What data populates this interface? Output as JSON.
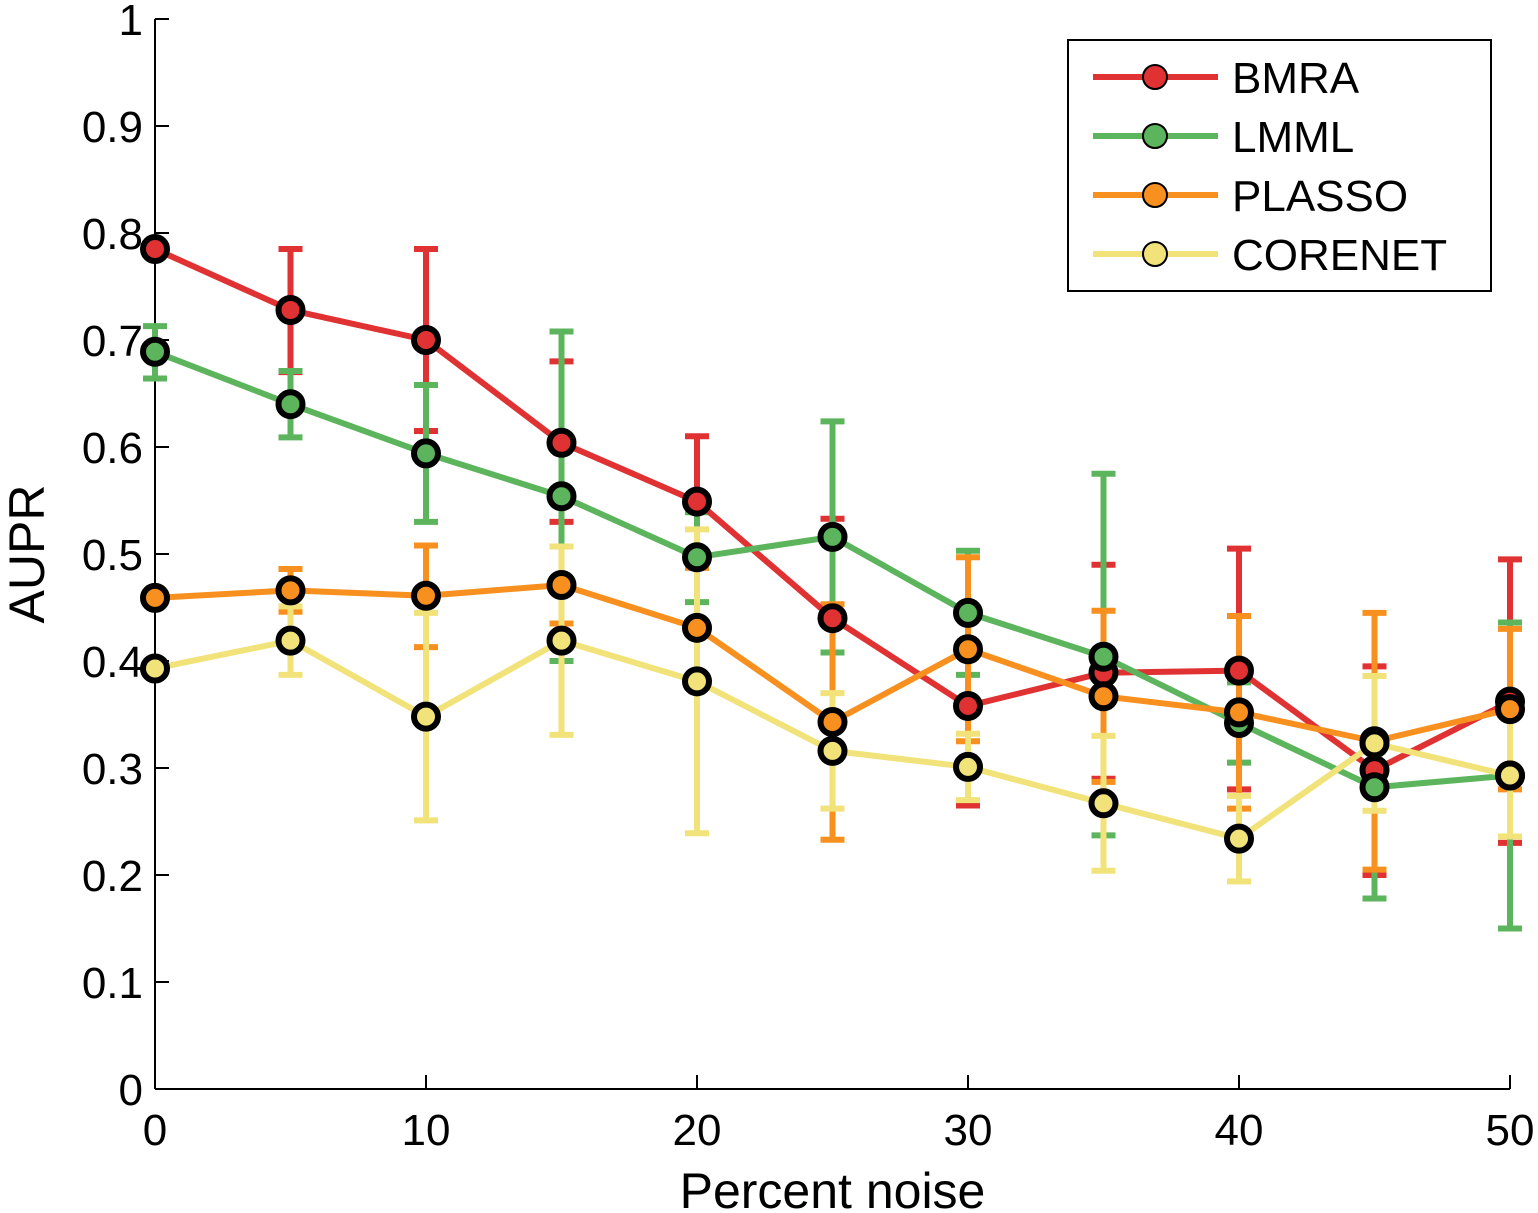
{
  "chart_data": {
    "type": "line",
    "xlabel": "Percent noise",
    "ylabel": "AUPR",
    "xlim": [
      0,
      50
    ],
    "ylim": [
      0,
      1
    ],
    "x_ticks": [
      0,
      10,
      20,
      30,
      40,
      50
    ],
    "y_ticks": [
      0,
      0.1,
      0.2,
      0.3,
      0.4,
      0.5,
      0.6,
      0.7,
      0.8,
      0.9,
      1
    ],
    "y_tick_labels": [
      "0",
      "0.1",
      "0.2",
      "0.3",
      "0.4",
      "0.5",
      "0.6",
      "0.7",
      "0.8",
      "0.9",
      "1"
    ],
    "grid": false,
    "legend_position": "top-right",
    "x": [
      0,
      5,
      10,
      15,
      20,
      25,
      30,
      35,
      40,
      45,
      50
    ],
    "series": [
      {
        "name": "BMRA",
        "color": "#e03232",
        "values": [
          0.785,
          0.728,
          0.7,
          0.604,
          0.549,
          0.44,
          0.358,
          0.389,
          0.391,
          0.298,
          0.362
        ],
        "err_low": [
          null,
          0.67,
          0.615,
          0.53,
          0.49,
          0.343,
          0.265,
          0.29,
          0.28,
          0.2,
          0.23
        ],
        "err_high": [
          null,
          0.785,
          0.785,
          0.68,
          0.61,
          0.533,
          0.44,
          0.49,
          0.505,
          0.395,
          0.495
        ]
      },
      {
        "name": "LMML",
        "color": "#5cb55c",
        "values": [
          0.689,
          0.64,
          0.594,
          0.554,
          0.497,
          0.516,
          0.445,
          0.404,
          0.342,
          0.282,
          0.293
        ],
        "err_low": [
          0.664,
          0.609,
          0.53,
          0.4,
          0.455,
          0.408,
          0.387,
          0.237,
          0.305,
          0.178,
          0.15
        ],
        "err_high": [
          0.713,
          0.671,
          0.658,
          0.708,
          0.539,
          0.624,
          0.503,
          0.575,
          0.38,
          0.386,
          0.436
        ]
      },
      {
        "name": "PLASSO",
        "color": "#f7901e",
        "values": [
          0.459,
          0.466,
          0.461,
          0.471,
          0.431,
          0.343,
          0.411,
          0.367,
          0.352,
          0.325,
          0.355
        ],
        "err_low": [
          null,
          0.446,
          0.413,
          0.435,
          0.375,
          0.233,
          0.325,
          0.287,
          0.262,
          0.205,
          0.28
        ],
        "err_high": [
          null,
          0.486,
          0.508,
          0.507,
          0.487,
          0.453,
          0.497,
          0.447,
          0.442,
          0.445,
          0.43
        ]
      },
      {
        "name": "CORENET",
        "color": "#f2e27a",
        "values": [
          0.393,
          0.419,
          0.348,
          0.419,
          0.381,
          0.316,
          0.301,
          0.267,
          0.234,
          0.323,
          0.293
        ],
        "err_low": [
          null,
          0.387,
          0.251,
          0.331,
          0.239,
          0.262,
          0.27,
          0.204,
          0.194,
          0.26,
          0.236
        ],
        "err_high": [
          null,
          0.451,
          0.445,
          0.507,
          0.523,
          0.37,
          0.332,
          0.33,
          0.274,
          0.386,
          0.35
        ]
      }
    ]
  }
}
